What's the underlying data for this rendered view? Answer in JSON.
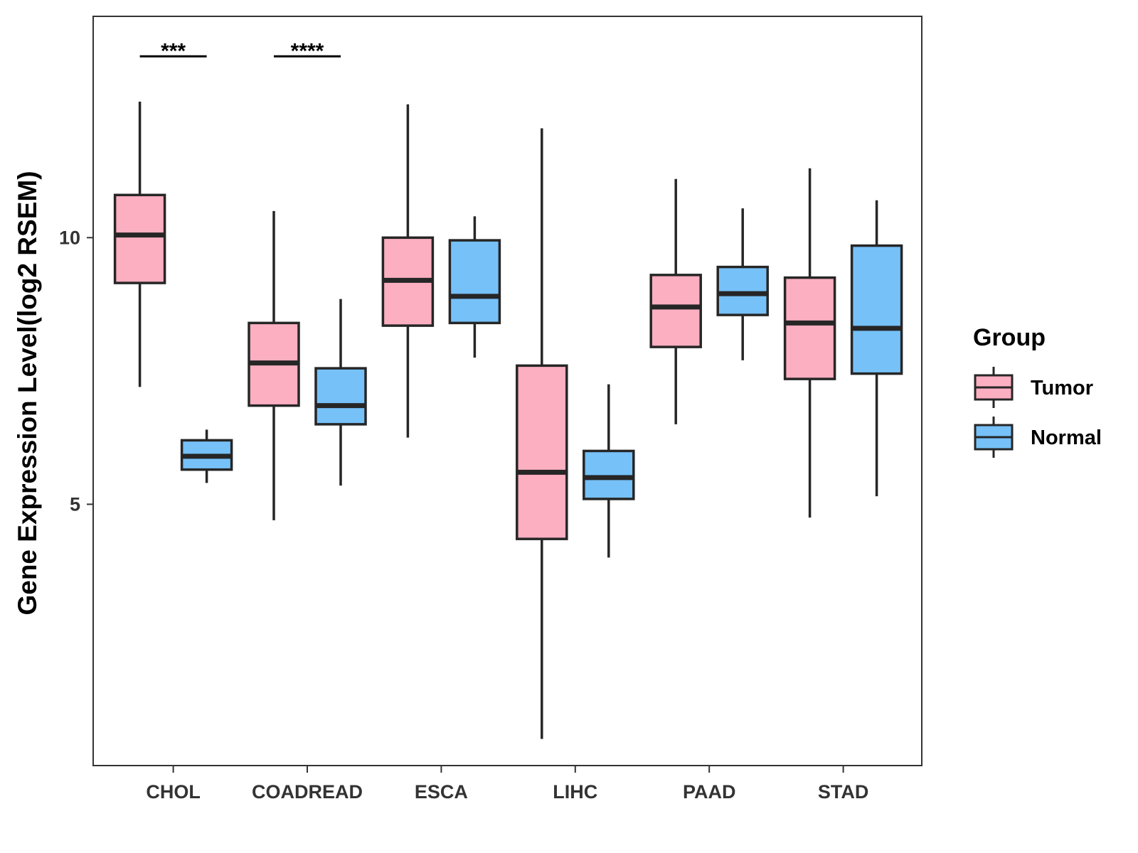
{
  "chart_data": {
    "type": "box",
    "title": "",
    "xlabel": "",
    "ylabel": "Gene Expression Level(log2 RSEM)",
    "ylim": [
      0.1,
      14.15
    ],
    "yticks": [
      5,
      10
    ],
    "grid": false,
    "legend_position": "right",
    "categories": [
      "CHOL",
      "COADREAD",
      "ESCA",
      "LIHC",
      "PAAD",
      "STAD"
    ],
    "legend": {
      "title": "Group"
    },
    "series": [
      {
        "name": "Tumor",
        "color": "#FBAFC1",
        "boxes": [
          {
            "min": 7.2,
            "q1": 9.15,
            "median": 10.05,
            "q3": 10.8,
            "max": 12.55
          },
          {
            "min": 4.7,
            "q1": 6.85,
            "median": 7.65,
            "q3": 8.4,
            "max": 10.5
          },
          {
            "min": 6.25,
            "q1": 8.35,
            "median": 9.2,
            "q3": 10.0,
            "max": 12.5
          },
          {
            "min": 0.6,
            "q1": 4.35,
            "median": 5.6,
            "q3": 7.6,
            "max": 12.05
          },
          {
            "min": 6.5,
            "q1": 7.95,
            "median": 8.7,
            "q3": 9.3,
            "max": 11.1
          },
          {
            "min": 4.75,
            "q1": 7.35,
            "median": 8.4,
            "q3": 9.25,
            "max": 11.3
          }
        ]
      },
      {
        "name": "Normal",
        "color": "#76C1F8",
        "boxes": [
          {
            "min": 5.4,
            "q1": 5.65,
            "median": 5.9,
            "q3": 6.2,
            "max": 6.4
          },
          {
            "min": 5.35,
            "q1": 6.5,
            "median": 6.85,
            "q3": 7.55,
            "max": 8.85
          },
          {
            "min": 7.75,
            "q1": 8.4,
            "median": 8.9,
            "q3": 9.95,
            "max": 10.4
          },
          {
            "min": 4.0,
            "q1": 5.1,
            "median": 5.5,
            "q3": 6.0,
            "max": 7.25
          },
          {
            "min": 7.7,
            "q1": 8.55,
            "median": 8.95,
            "q3": 9.45,
            "max": 10.55
          },
          {
            "min": 5.15,
            "q1": 7.45,
            "median": 8.3,
            "q3": 9.85,
            "max": 10.7
          }
        ]
      }
    ],
    "annotations": [
      {
        "category": "CHOL",
        "text": "***",
        "y": 13.4
      },
      {
        "category": "COADREAD",
        "text": "****",
        "y": 13.4
      }
    ]
  }
}
